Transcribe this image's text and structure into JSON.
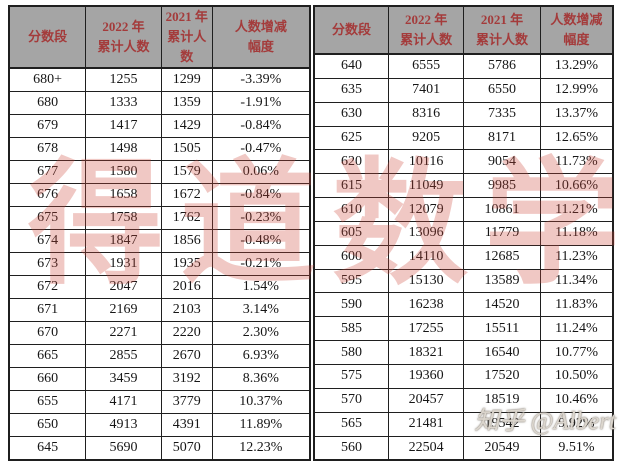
{
  "colors": {
    "header_bg": "#a5a5a5",
    "header_text": "#a43b3b",
    "border": "#1f1f1f",
    "center_watermark_red": "rgba(206,72,60,0.30)"
  },
  "header_columns": [
    {
      "line1": "分数段",
      "line2": ""
    },
    {
      "line1": "2022 年",
      "line2": "累计人数"
    },
    {
      "line1": "2021 年",
      "line2": "累计人数"
    },
    {
      "line1": "人数增减",
      "line2": "幅度"
    }
  ],
  "tables": [
    {
      "rows": [
        [
          "680+",
          "1255",
          "1299",
          "-3.39%"
        ],
        [
          "680",
          "1333",
          "1359",
          "-1.91%"
        ],
        [
          "679",
          "1417",
          "1429",
          "-0.84%"
        ],
        [
          "678",
          "1498",
          "1505",
          "-0.47%"
        ],
        [
          "677",
          "1580",
          "1579",
          "0.06%"
        ],
        [
          "676",
          "1658",
          "1672",
          "-0.84%"
        ],
        [
          "675",
          "1758",
          "1762",
          "-0.23%"
        ],
        [
          "674",
          "1847",
          "1856",
          "-0.48%"
        ],
        [
          "673",
          "1931",
          "1935",
          "-0.21%"
        ],
        [
          "672",
          "2047",
          "2016",
          "1.54%"
        ],
        [
          "671",
          "2169",
          "2103",
          "3.14%"
        ],
        [
          "670",
          "2271",
          "2220",
          "2.30%"
        ],
        [
          "665",
          "2855",
          "2670",
          "6.93%"
        ],
        [
          "660",
          "3459",
          "3192",
          "8.36%"
        ],
        [
          "655",
          "4171",
          "3779",
          "10.37%"
        ],
        [
          "650",
          "4913",
          "4391",
          "11.89%"
        ],
        [
          "645",
          "5690",
          "5070",
          "12.23%"
        ]
      ]
    },
    {
      "rows": [
        [
          "640",
          "6555",
          "5786",
          "13.29%"
        ],
        [
          "635",
          "7401",
          "6550",
          "12.99%"
        ],
        [
          "630",
          "8316",
          "7335",
          "13.37%"
        ],
        [
          "625",
          "9205",
          "8171",
          "12.65%"
        ],
        [
          "620",
          "10116",
          "9054",
          "11.73%"
        ],
        [
          "615",
          "11049",
          "9985",
          "10.66%"
        ],
        [
          "610",
          "12079",
          "10861",
          "11.21%"
        ],
        [
          "605",
          "13096",
          "11779",
          "11.18%"
        ],
        [
          "600",
          "14110",
          "12685",
          "11.23%"
        ],
        [
          "595",
          "15130",
          "13589",
          "11.34%"
        ],
        [
          "590",
          "16238",
          "14520",
          "11.83%"
        ],
        [
          "585",
          "17255",
          "15511",
          "11.24%"
        ],
        [
          "580",
          "18321",
          "16540",
          "10.77%"
        ],
        [
          "575",
          "19360",
          "17520",
          "10.50%"
        ],
        [
          "570",
          "20457",
          "18519",
          "10.46%"
        ],
        [
          "565",
          "21481",
          "19542",
          "9.92%"
        ],
        [
          "560",
          "22504",
          "20549",
          "9.51%"
        ]
      ]
    }
  ],
  "watermarks": {
    "center": "得道数学",
    "corner": "知乎 @Albert"
  }
}
